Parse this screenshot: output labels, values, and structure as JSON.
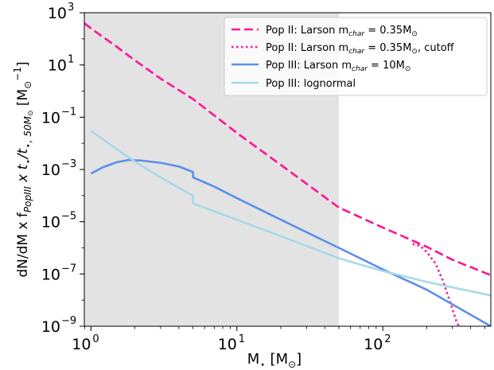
{
  "chart_data": {
    "type": "line",
    "x_scale": "log",
    "y_scale": "log",
    "xlim": [
      0.9,
      550
    ],
    "ylim": [
      1e-09,
      1000
    ],
    "grid": false,
    "legend_position": "top-right",
    "shaded_region": {
      "x_min": 0.9,
      "x_max": 50,
      "color": "#e3e3e3"
    },
    "x_ticks": [
      {
        "value": 1,
        "base": "10",
        "exp": "0"
      },
      {
        "value": 10,
        "base": "10",
        "exp": "1"
      },
      {
        "value": 100,
        "base": "10",
        "exp": "2"
      }
    ],
    "y_ticks": [
      {
        "value": 1000,
        "base": "10",
        "exp": "3"
      },
      {
        "value": 10,
        "base": "10",
        "exp": "1"
      },
      {
        "value": 0.1,
        "base": "10",
        "exp": "−1"
      },
      {
        "value": 0.001,
        "base": "10",
        "exp": "−3"
      },
      {
        "value": 1e-05,
        "base": "10",
        "exp": "−5"
      },
      {
        "value": 1e-07,
        "base": "10",
        "exp": "−7"
      },
      {
        "value": 1e-09,
        "base": "10",
        "exp": "−9"
      }
    ],
    "xlabel": "M⋆ [M⊙]",
    "ylabel": "dN/dM x f_PopIII x t⋆/t⋆,50M⊙ [M⊙⁻¹]",
    "series": [
      {
        "name": "Pop II: Larson m_char = 0.35M⊙",
        "color": "#ff1493",
        "style": "dashed",
        "x": [
          0.9,
          1,
          1.5,
          2,
          3,
          5,
          10,
          20,
          50,
          100,
          200,
          300,
          550
        ],
        "y": [
          400,
          250,
          50,
          15,
          3,
          0.5,
          0.025,
          0.0015,
          3.5e-05,
          6e-06,
          1.1e-06,
          3.5e-07,
          9e-08
        ]
      },
      {
        "name": "Pop II: Larson m_char = 0.35M⊙, cutoff",
        "color": "#ff1493",
        "style": "dotted",
        "x": [
          160,
          180,
          200,
          230,
          260,
          290,
          320,
          340
        ],
        "y": [
          1.4e-06,
          1.2e-06,
          7e-07,
          2.5e-07,
          5e-08,
          8e-09,
          1.5e-09,
          8e-10
        ]
      },
      {
        "name": "Pop III: Larson m_char = 10M⊙",
        "color": "#5b8fe8",
        "style": "solid",
        "x": [
          1,
          1.2,
          1.5,
          1.8,
          2.2,
          3,
          4,
          5,
          5.01,
          7,
          10,
          20,
          50,
          100,
          200,
          550
        ],
        "y": [
          0.0007,
          0.0012,
          0.0019,
          0.0023,
          0.0022,
          0.0018,
          0.0013,
          0.0008,
          0.0005,
          0.00022,
          8e-05,
          1.2e-05,
          1e-06,
          1.5e-07,
          2.5e-08,
          1e-09
        ]
      },
      {
        "name": "Pop III: lognormal",
        "color": "#a8d8e8",
        "style": "solid",
        "x": [
          1,
          1.5,
          2,
          3,
          4,
          5,
          5.01,
          7,
          10,
          20,
          50,
          100,
          200,
          550
        ],
        "y": [
          0.03,
          0.006,
          0.002,
          0.0005,
          0.0002,
          0.0001,
          5e-05,
          2.5e-05,
          1.2e-05,
          2.8e-06,
          4e-07,
          1.3e-07,
          5e-08,
          1.5e-08
        ]
      }
    ]
  }
}
